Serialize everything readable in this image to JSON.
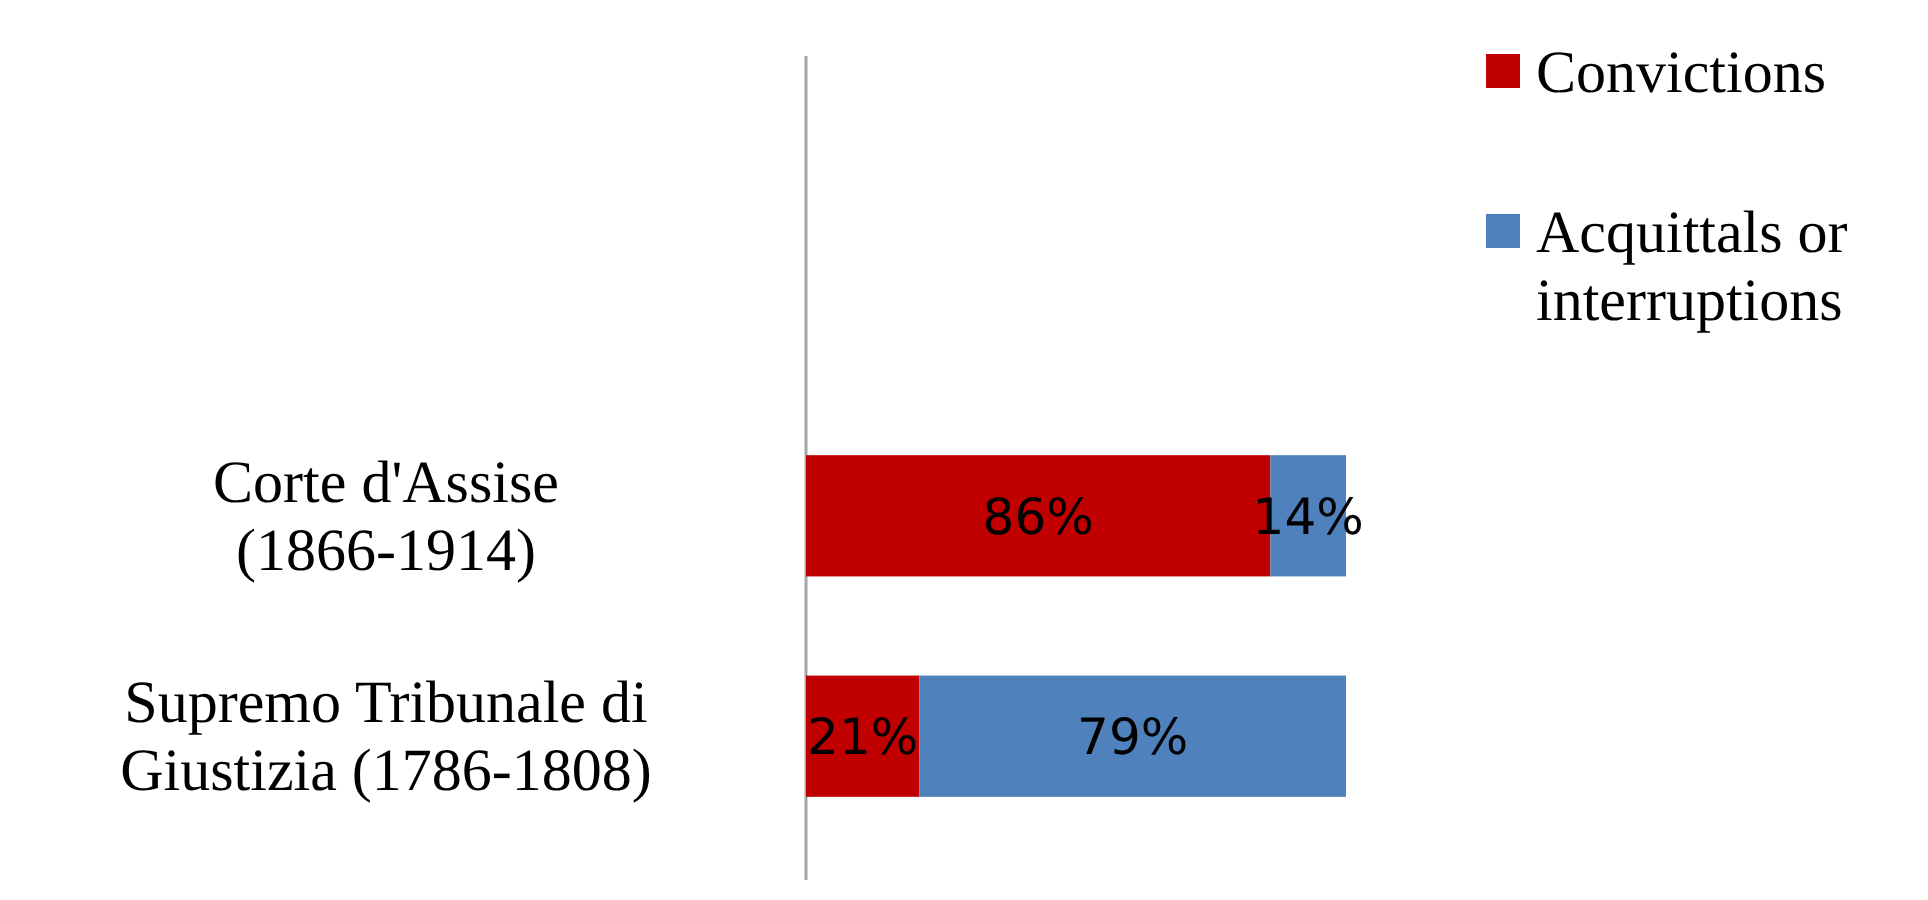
{
  "chart_data": {
    "type": "bar",
    "orientation": "horizontal",
    "stacked": true,
    "categories": [
      "Corte d'Assise (1866-1914)",
      "Supremo Tribunale di Giustizia (1786-1808)"
    ],
    "series": [
      {
        "name": "Convictions",
        "color": "#c00000",
        "values": [
          86,
          21
        ],
        "value_labels": [
          "86%",
          "21%"
        ]
      },
      {
        "name": "Acquittals or interruptions",
        "color": "#4f81bd",
        "values": [
          14,
          79
        ],
        "value_labels": [
          "14%",
          "79%"
        ]
      }
    ],
    "legend": "right"
  }
}
